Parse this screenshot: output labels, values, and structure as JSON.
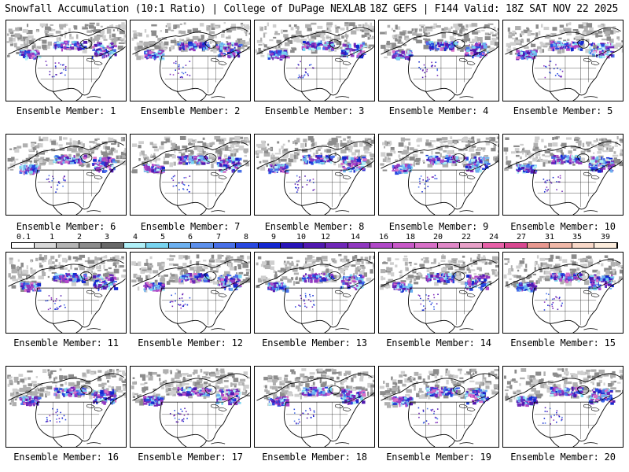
{
  "header": {
    "left": "Snowfall Accumulation (10:1 Ratio) | College of DuPage NEXLAB",
    "right": "18Z GEFS | F144 Valid: 18Z SAT NOV 22 2025"
  },
  "members": [
    "Ensemble Member: 1",
    "Ensemble Member: 2",
    "Ensemble Member: 3",
    "Ensemble Member: 4",
    "Ensemble Member: 5",
    "Ensemble Member: 6",
    "Ensemble Member: 7",
    "Ensemble Member: 8",
    "Ensemble Member: 9",
    "Ensemble Member: 10",
    "Ensemble Member: 11",
    "Ensemble Member: 12",
    "Ensemble Member: 13",
    "Ensemble Member: 14",
    "Ensemble Member: 15",
    "Ensemble Member: 16",
    "Ensemble Member: 17",
    "Ensemble Member: 18",
    "Ensemble Member: 19",
    "Ensemble Member: 20"
  ],
  "scale": {
    "labels": [
      "0.1",
      "1",
      "2",
      "3",
      "4",
      "5",
      "6",
      "7",
      "8",
      "9",
      "10",
      "12",
      "14",
      "16",
      "18",
      "20",
      "22",
      "24",
      "27",
      "31",
      "35",
      "39"
    ],
    "colors": [
      "#ffffff",
      "#d8d8d8",
      "#b4b4b4",
      "#8c8c8c",
      "#686868",
      "#b0f0f8",
      "#78d4f0",
      "#6cb0f0",
      "#5c90ec",
      "#4870e8",
      "#2848e0",
      "#1428d0",
      "#2814b8",
      "#5018b0",
      "#7028b8",
      "#9038c0",
      "#b048c8",
      "#c858c8",
      "#d870c8",
      "#e088c8",
      "#e8a0c8",
      "#e860a8",
      "#d84890",
      "#e89890",
      "#f0b8a8",
      "#f8d8c8",
      "#fcecdc"
    ]
  }
}
